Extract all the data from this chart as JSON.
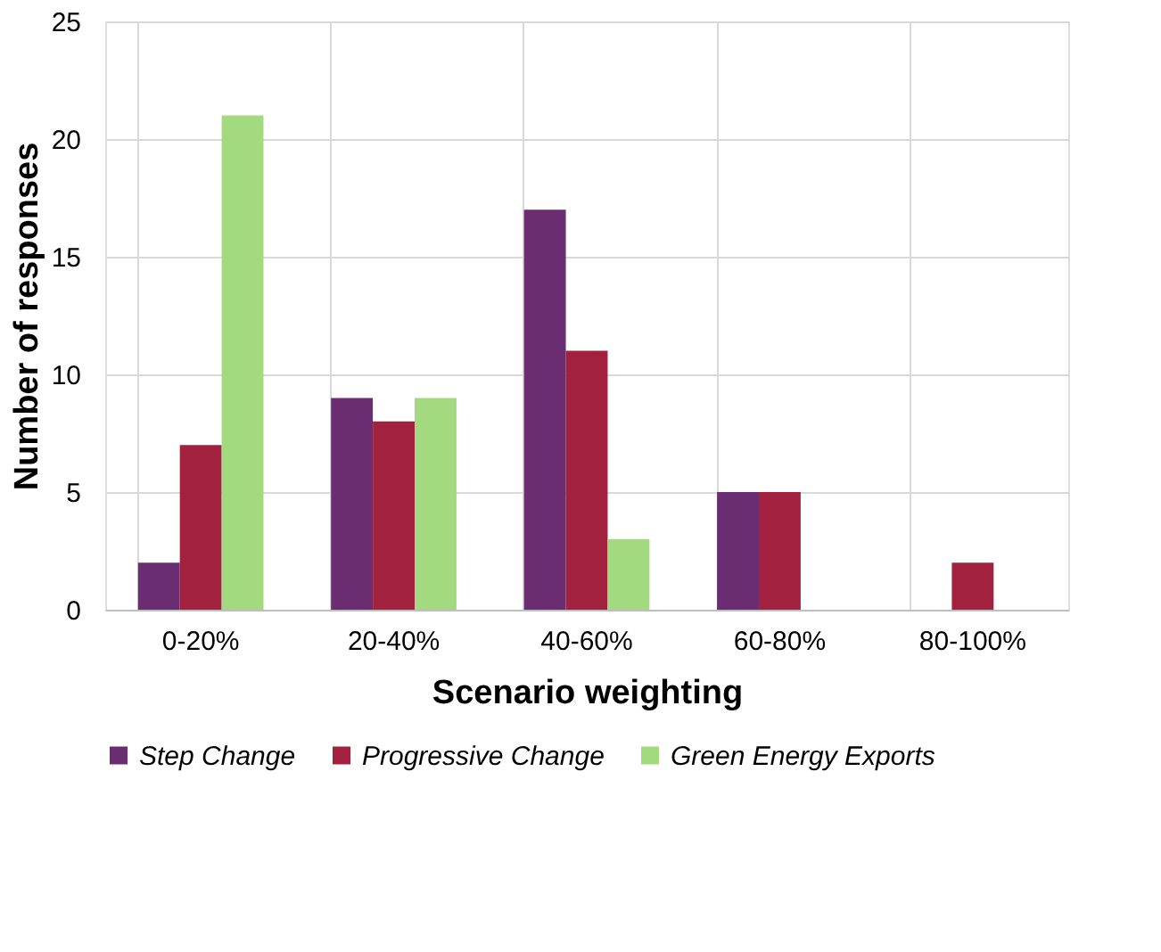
{
  "chart_data": {
    "type": "bar",
    "xlabel": "Scenario weighting",
    "ylabel": "Number of responses",
    "categories": [
      "0-20%",
      "20-40%",
      "40-60%",
      "60-80%",
      "80-100%"
    ],
    "series": [
      {
        "name": "Step Change",
        "color": "#6b2d72",
        "values": [
          2,
          9,
          17,
          5,
          0
        ]
      },
      {
        "name": "Progressive Change",
        "color": "#a2213f",
        "values": [
          7,
          8,
          11,
          5,
          2
        ]
      },
      {
        "name": "Green Energy Exports",
        "color": "#a3d97f",
        "values": [
          21,
          9,
          3,
          0,
          0
        ]
      }
    ],
    "ylim": [
      0,
      25
    ],
    "yticks": [
      0,
      5,
      10,
      15,
      20,
      25
    ],
    "grid": true,
    "legend": "bottom"
  }
}
